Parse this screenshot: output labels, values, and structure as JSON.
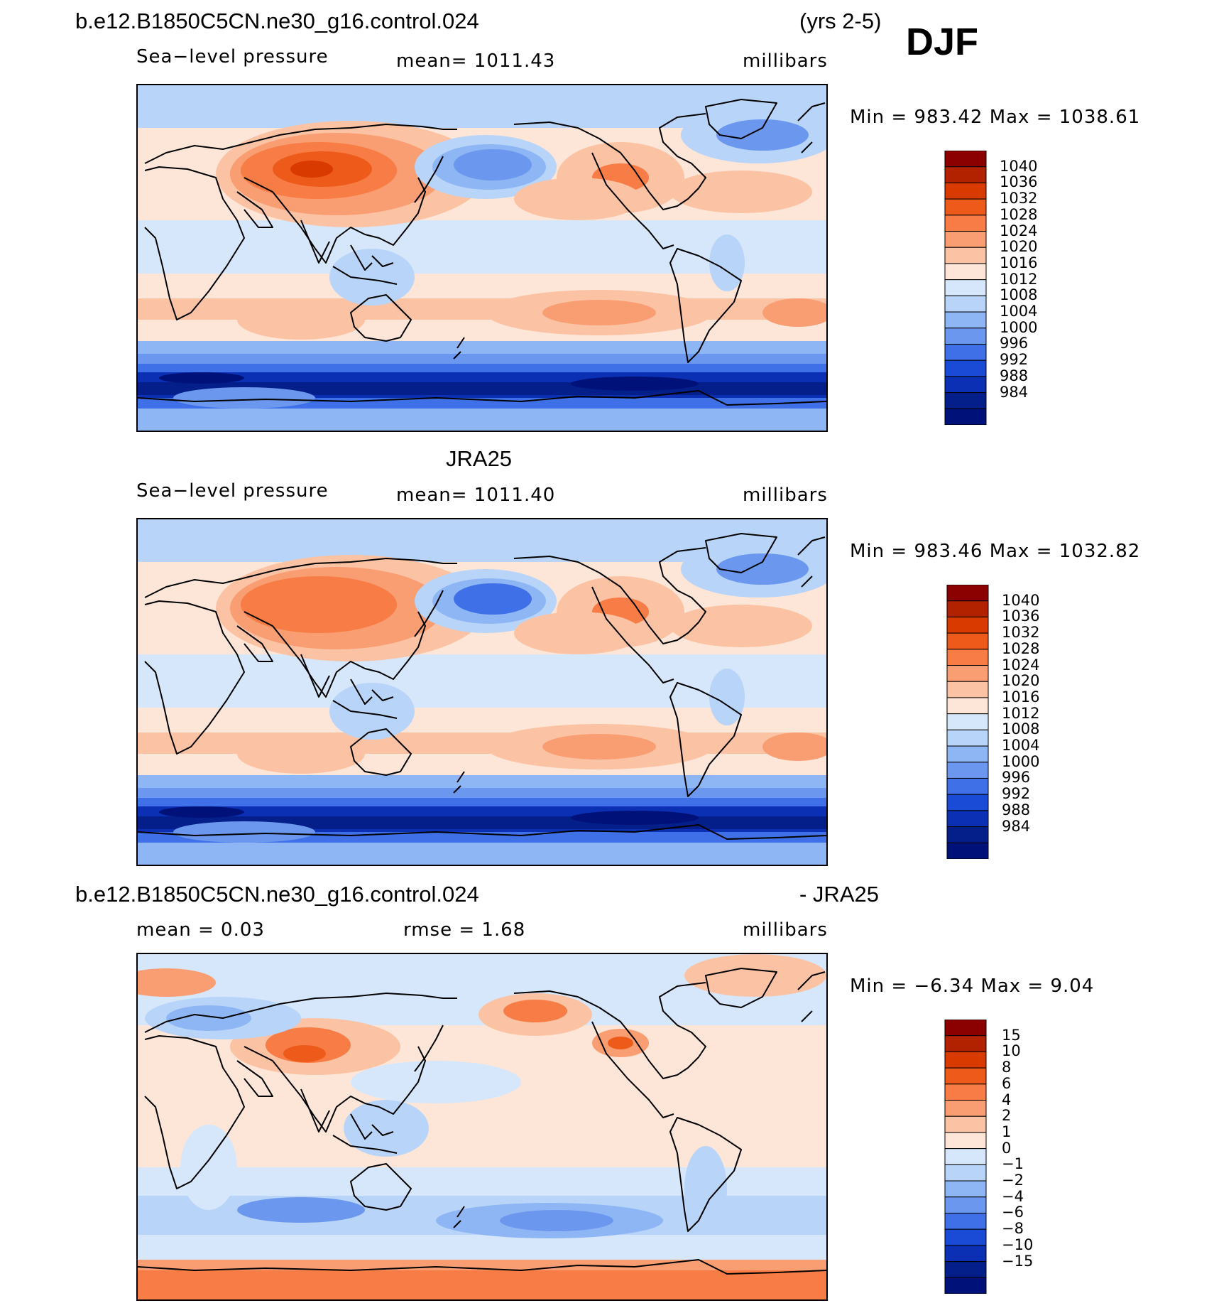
{
  "season": "DJF",
  "colors": {
    "slp_scale": [
      "#8b0000",
      "#b22200",
      "#d93a00",
      "#ee5a1a",
      "#f77c45",
      "#f99d72",
      "#fbc2a4",
      "#fde6d8",
      "#d6e7fb",
      "#b8d4f8",
      "#8fb6f4",
      "#6b97ef",
      "#3f70e8",
      "#1a4bd6",
      "#0c30b4",
      "#041e8a",
      "#00127a"
    ],
    "land_outline": "#000000"
  },
  "panel1": {
    "case": "b.e12.B1850C5CN.ne30_g16.control.024",
    "years": "(yrs 2-5)",
    "variable": "Sea−level pressure",
    "mean": "mean=  1011.43",
    "units": "millibars",
    "minmax": "Min  =  983.42  Max  =  1038.61"
  },
  "panel2": {
    "title": "JRA25",
    "variable": "Sea−level pressure",
    "mean": "mean=  1011.40",
    "units": "millibars",
    "minmax": "Min  =  983.46  Max  =  1032.82"
  },
  "panel3": {
    "case": "b.e12.B1850C5CN.ne30_g16.control.024",
    "minus": "- JRA25",
    "mean": "mean  =     0.03",
    "rmse": "rmse  =     1.68",
    "units": "millibars",
    "minmax": "Min  =    −6.34  Max  =     9.04"
  },
  "chart_data": [
    {
      "type": "heatmap",
      "title": "b.e12.B1850C5CN.ne30_g16.control.024",
      "field": "Sea-level pressure",
      "units": "millibars",
      "mean": 1011.43,
      "min": 983.42,
      "max": 1038.61,
      "colorbar_levels": [
        "1040",
        "1036",
        "1032",
        "1028",
        "1024",
        "1020",
        "1016",
        "1012",
        "1008",
        "1004",
        "1000",
        "996",
        "992",
        "988",
        "984"
      ]
    },
    {
      "type": "heatmap",
      "title": "JRA25",
      "field": "Sea-level pressure",
      "units": "millibars",
      "mean": 1011.4,
      "min": 983.46,
      "max": 1032.82,
      "colorbar_levels": [
        "1040",
        "1036",
        "1032",
        "1028",
        "1024",
        "1020",
        "1016",
        "1012",
        "1008",
        "1004",
        "1000",
        "996",
        "992",
        "988",
        "984"
      ]
    },
    {
      "type": "heatmap",
      "title": "b.e12.B1850C5CN.ne30_g16.control.024 - JRA25",
      "units": "millibars",
      "mean": 0.03,
      "rmse": 1.68,
      "min": -6.34,
      "max": 9.04,
      "colorbar_levels": [
        "15",
        "10",
        "8",
        "6",
        "4",
        "2",
        "1",
        "0",
        "−1",
        "−2",
        "−4",
        "−6",
        "−8",
        "−10",
        "−15"
      ]
    }
  ]
}
